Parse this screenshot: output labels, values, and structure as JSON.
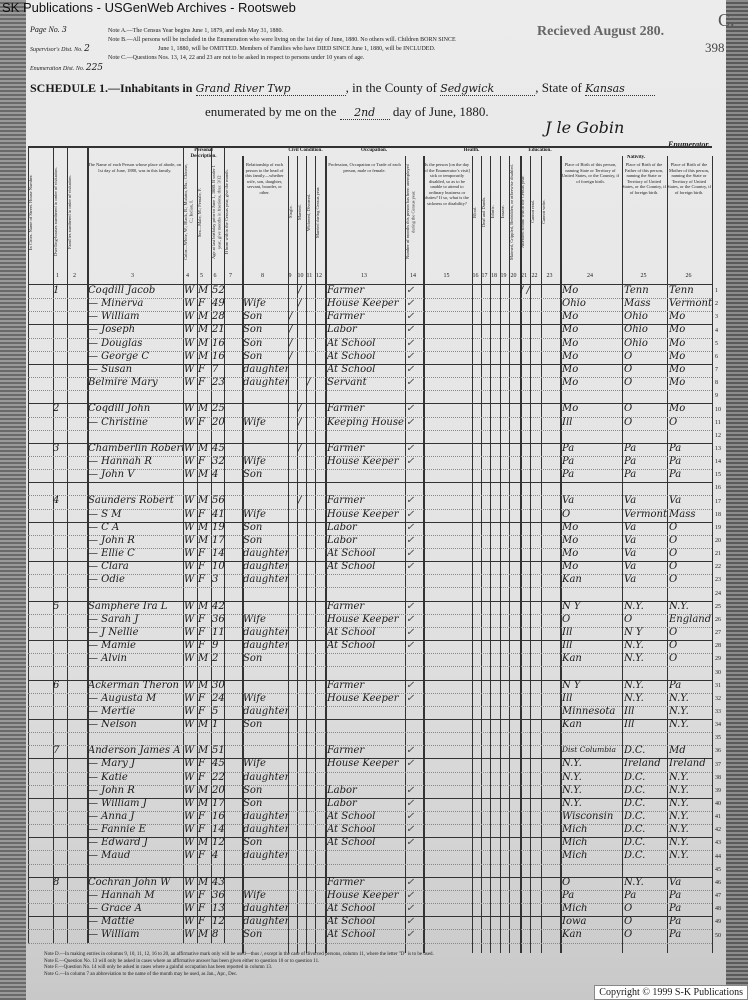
{
  "watermark": "SK Publications - USGenWeb Archives - Rootsweb",
  "copyright": "Copyright © 1999 S-K Publications",
  "received": "Recieved August 280.",
  "corner_mark": "C.",
  "corner_number": "398",
  "page_no_label": "Page No.",
  "page_no": "3",
  "supervisor_label": "Supervisor's Dist. No.",
  "supervisor_no": "2",
  "enum_dist_label": "Enumeration Dist. No.",
  "enum_dist_no": "225",
  "notes_top": [
    "Note A.—The Census Year begins June 1, 1879, and ends May 31, 1880.",
    "Note B.—All persons will be included in the Enumeration who were living on the 1st day of June, 1880. No others will. Children BORN SINCE",
    "June 1, 1880, will be OMITTED. Members of Families who have DIED SINCE June 1, 1880, will be INCLUDED.",
    "Note C.—Questions Nos. 13, 14, 22 and 23 are not to be asked in respect to persons under 10 years of age."
  ],
  "schedule": {
    "title": "SCHEDULE 1.—Inhabitants in",
    "place": "Grand River Twp",
    "county_label": ", in the County of",
    "county": "Sedgwick",
    "state_label": ", State of",
    "state": "Kansas",
    "enumerated_label": "enumerated by me on the",
    "day": "2nd",
    "month_year": "day of June, 1880.",
    "enumerator_signature": "J le Gobin",
    "enumerator_label": "Enumerator."
  },
  "groups": {
    "personal": "Personal Description.",
    "civil": "Civil Condition.",
    "occupation": "Occupation.",
    "health": "Health.",
    "education": "Education.",
    "nativity": "Nativity."
  },
  "columns": [
    {
      "n": "",
      "h": "In Cities. Name of Street. House Number."
    },
    {
      "n": "1",
      "h": "Dwelling-houses numbered in order of visitation."
    },
    {
      "n": "2",
      "h": "Families numbered in order of visitation."
    },
    {
      "n": "3",
      "h": "The Name of each Person whose place of abode, on 1st day of June, 1880, was in this family."
    },
    {
      "n": "4",
      "h": "Color—White, W.; Black, B.; Mulatto, Mu.; Chinese, C.; Indian, I."
    },
    {
      "n": "5",
      "h": "Sex—Male, M.; Female, F."
    },
    {
      "n": "6",
      "h": "Age at last birthday prior to June 1, 1880. If under 1 year, give months in fractions, thus: 3/12"
    },
    {
      "n": "7",
      "h": "If born within the Census year, give the month."
    },
    {
      "n": "8",
      "h": "Relationship of each person to the head of this family—whether wife, son, daughter, servant, boarder, or other."
    },
    {
      "n": "9",
      "h": "Single."
    },
    {
      "n": "10",
      "h": "Married."
    },
    {
      "n": "11",
      "h": "Widowed, Divorced."
    },
    {
      "n": "12",
      "h": "Married during Census year."
    },
    {
      "n": "13",
      "h": "Profession, Occupation or Trade of each person, male or female."
    },
    {
      "n": "14",
      "h": "Number of months this person has been unemployed during the Census year."
    },
    {
      "n": "15",
      "h": "Is the person [on the day of the Enumerator's visit] sick or temporarily disabled, so as to be unable to attend to ordinary business or duties? If so, what is the sickness or disability?"
    },
    {
      "n": "16",
      "h": "Blind."
    },
    {
      "n": "17",
      "h": "Deaf and Dumb."
    },
    {
      "n": "18",
      "h": "Idiotic."
    },
    {
      "n": "19",
      "h": "Insane."
    },
    {
      "n": "20",
      "h": "Maimed, Crippled, Bedridden, or otherwise disabled."
    },
    {
      "n": "21",
      "h": "Attended school within the Census year."
    },
    {
      "n": "22",
      "h": "Cannot read."
    },
    {
      "n": "23",
      "h": "Cannot write."
    },
    {
      "n": "24",
      "h": "Place of Birth of this person, naming State or Territory of United States, or the Country, if of foreign birth."
    },
    {
      "n": "25",
      "h": "Place of Birth of the Father of this person, naming the State or Territory of United States, or the Country, if of foreign birth."
    },
    {
      "n": "26",
      "h": "Place of Birth of the Mother of this person, naming the State or Territory of United States, or the Country, if of foreign birth."
    }
  ],
  "rows": [
    {
      "line": 1,
      "fam": "1",
      "name": "Coqdill Jacob",
      "color": "W",
      "sex": "M",
      "age": "52",
      "rel": "",
      "married": "/",
      "occ": "Farmer",
      "edu": "/ /",
      "birth": "Mo",
      "father": "Tenn",
      "mother": "Tenn"
    },
    {
      "line": 2,
      "name": "— Minerva",
      "color": "W",
      "sex": "F",
      "age": "49",
      "rel": "Wife",
      "married": "/",
      "occ": "House Keeper",
      "birth": "Ohio",
      "father": "Mass",
      "mother": "Vermont"
    },
    {
      "line": 3,
      "name": "— William",
      "color": "W",
      "sex": "M",
      "age": "28",
      "rel": "Son",
      "single": "/",
      "occ": "Farmer",
      "birth": "Mo",
      "father": "Ohio",
      "mother": "Mo"
    },
    {
      "line": 4,
      "name": "— Joseph",
      "color": "W",
      "sex": "M",
      "age": "21",
      "rel": "Son",
      "single": "/",
      "occ": "Labor",
      "birth": "Mo",
      "father": "Ohio",
      "mother": "Mo"
    },
    {
      "line": 5,
      "name": "— Douglas",
      "color": "W",
      "sex": "M",
      "age": "16",
      "rel": "Son",
      "single": "/",
      "occ": "At School",
      "birth": "Mo",
      "father": "Ohio",
      "mother": "Mo"
    },
    {
      "line": 6,
      "name": "— George C",
      "color": "W",
      "sex": "M",
      "age": "16",
      "rel": "Son",
      "single": "/",
      "occ": "At School",
      "birth": "Mo",
      "father": "O",
      "mother": "Mo"
    },
    {
      "line": 7,
      "name": "— Susan",
      "color": "W",
      "sex": "F",
      "age": "7",
      "rel": "daughter",
      "occ": "At School",
      "birth": "Mo",
      "father": "O",
      "mother": "Mo"
    },
    {
      "line": 8,
      "name": "Belmire Mary",
      "color": "W",
      "sex": "F",
      "age": "23",
      "rel": "daughter",
      "widowed": "/",
      "occ": "Servant",
      "birth": "Mo",
      "father": "O",
      "mother": "Mo"
    },
    {
      "line": 10,
      "fam": "2",
      "name": "Coqdill John",
      "color": "W",
      "sex": "M",
      "age": "25",
      "rel": "",
      "married": "/",
      "occ": "Farmer",
      "birth": "Mo",
      "father": "O",
      "mother": "Mo"
    },
    {
      "line": 11,
      "name": "— Christine",
      "color": "W",
      "sex": "F",
      "age": "20",
      "rel": "Wife",
      "married": "/",
      "occ": "Keeping House",
      "birth": "Ill",
      "father": "O",
      "mother": "O"
    },
    {
      "line": 13,
      "fam": "3",
      "name": "Chamberlin Robert H",
      "color": "W",
      "sex": "M",
      "age": "45",
      "rel": "",
      "married": "/",
      "occ": "Farmer",
      "birth": "Pa",
      "father": "Pa",
      "mother": "Pa"
    },
    {
      "line": 14,
      "name": "— Hannah R",
      "color": "W",
      "sex": "F",
      "age": "32",
      "rel": "Wife",
      "occ": "House Keeper",
      "birth": "Pa",
      "father": "Pa",
      "mother": "Pa"
    },
    {
      "line": 15,
      "name": "— John V",
      "color": "W",
      "sex": "M",
      "age": "4",
      "rel": "Son",
      "occ": "",
      "birth": "Pa",
      "father": "Pa",
      "mother": "Pa"
    },
    {
      "line": 17,
      "fam": "4",
      "name": "Saunders Robert",
      "color": "W",
      "sex": "M",
      "age": "56",
      "rel": "",
      "married": "/",
      "occ": "Farmer",
      "birth": "Va",
      "father": "Va",
      "mother": "Va"
    },
    {
      "line": 18,
      "name": "— S M",
      "color": "W",
      "sex": "F",
      "age": "41",
      "rel": "Wife",
      "occ": "House Keeper",
      "birth": "O",
      "father": "Vermont",
      "mother": "Mass"
    },
    {
      "line": 19,
      "name": "— C A",
      "color": "W",
      "sex": "M",
      "age": "19",
      "rel": "Son",
      "occ": "Labor",
      "birth": "Mo",
      "father": "Va",
      "mother": "O"
    },
    {
      "line": 20,
      "name": "— John R",
      "color": "W",
      "sex": "M",
      "age": "17",
      "rel": "Son",
      "occ": "Labor",
      "birth": "Mo",
      "father": "Va",
      "mother": "O"
    },
    {
      "line": 21,
      "name": "— Ellie C",
      "color": "W",
      "sex": "F",
      "age": "14",
      "rel": "daughter",
      "occ": "At School",
      "birth": "Mo",
      "father": "Va",
      "mother": "O"
    },
    {
      "line": 22,
      "name": "— Clara",
      "color": "W",
      "sex": "F",
      "age": "10",
      "rel": "daughter",
      "occ": "At School",
      "birth": "Mo",
      "father": "Va",
      "mother": "O"
    },
    {
      "line": 23,
      "name": "— Odie",
      "color": "W",
      "sex": "F",
      "age": "3",
      "rel": "daughter",
      "occ": "",
      "birth": "Kan",
      "father": "Va",
      "mother": "O"
    },
    {
      "line": 25,
      "fam": "5",
      "name": "Samphere Ira L",
      "color": "W",
      "sex": "M",
      "age": "42",
      "rel": "",
      "occ": "Farmer",
      "birth": "N Y",
      "father": "N.Y.",
      "mother": "N.Y."
    },
    {
      "line": 26,
      "name": "— Sarah J",
      "color": "W",
      "sex": "F",
      "age": "36",
      "rel": "Wife",
      "occ": "House Keeper",
      "birth": "O",
      "father": "O",
      "mother": "England"
    },
    {
      "line": 27,
      "name": "— J Nellie",
      "color": "W",
      "sex": "F",
      "age": "11",
      "rel": "daughter",
      "occ": "At School",
      "birth": "Ill",
      "father": "N Y",
      "mother": "O"
    },
    {
      "line": 28,
      "name": "— Mamie",
      "color": "W",
      "sex": "F",
      "age": "9",
      "rel": "daughter",
      "occ": "At School",
      "birth": "Ill",
      "father": "N.Y.",
      "mother": "O"
    },
    {
      "line": 29,
      "name": "— Alvin",
      "color": "W",
      "sex": "M",
      "age": "2",
      "rel": "Son",
      "occ": "",
      "birth": "Kan",
      "father": "N.Y.",
      "mother": "O"
    },
    {
      "line": 31,
      "fam": "6",
      "name": "Ackerman Theron",
      "color": "W",
      "sex": "M",
      "age": "30",
      "rel": "",
      "occ": "Farmer",
      "birth": "N Y",
      "father": "N.Y.",
      "mother": "Pa"
    },
    {
      "line": 32,
      "name": "— Augusta M",
      "color": "W",
      "sex": "F",
      "age": "24",
      "rel": "Wife",
      "occ": "House Keeper",
      "birth": "Ill",
      "father": "N.Y.",
      "mother": "N.Y."
    },
    {
      "line": 33,
      "name": "— Mertie",
      "color": "W",
      "sex": "F",
      "age": "5",
      "rel": "daughter",
      "occ": "",
      "birth": "Minnesota",
      "father": "Ill",
      "mother": "N.Y."
    },
    {
      "line": 34,
      "name": "— Nelson",
      "color": "W",
      "sex": "M",
      "age": "1",
      "rel": "Son",
      "occ": "",
      "birth": "Kan",
      "father": "Ill",
      "mother": "N.Y."
    },
    {
      "line": 36,
      "fam": "7",
      "name": "Anderson James A",
      "color": "W",
      "sex": "M",
      "age": "51",
      "rel": "",
      "occ": "Farmer",
      "birth": "Dist Columbia",
      "father": "D.C.",
      "mother": "Md"
    },
    {
      "line": 37,
      "name": "— Mary J",
      "color": "W",
      "sex": "F",
      "age": "45",
      "rel": "Wife",
      "occ": "House Keeper",
      "birth": "N.Y.",
      "father": "Ireland",
      "mother": "Ireland"
    },
    {
      "line": 38,
      "name": "— Katie",
      "color": "W",
      "sex": "F",
      "age": "22",
      "rel": "daughter",
      "occ": "",
      "birth": "N.Y.",
      "father": "D.C.",
      "mother": "N.Y."
    },
    {
      "line": 39,
      "name": "— John R",
      "color": "W",
      "sex": "M",
      "age": "20",
      "rel": "Son",
      "occ": "Labor",
      "birth": "N.Y.",
      "father": "D.C.",
      "mother": "N.Y."
    },
    {
      "line": 40,
      "name": "— William J",
      "color": "W",
      "sex": "M",
      "age": "17",
      "rel": "Son",
      "occ": "Labor",
      "birth": "N.Y.",
      "father": "D.C.",
      "mother": "N.Y."
    },
    {
      "line": 41,
      "name": "— Anna J",
      "color": "W",
      "sex": "F",
      "age": "16",
      "rel": "daughter",
      "occ": "At School",
      "birth": "Wisconsin",
      "father": "D.C.",
      "mother": "N.Y."
    },
    {
      "line": 42,
      "name": "— Fannie E",
      "color": "W",
      "sex": "F",
      "age": "14",
      "rel": "daughter",
      "occ": "At School",
      "birth": "Mich",
      "father": "D.C.",
      "mother": "N.Y."
    },
    {
      "line": 43,
      "name": "— Edward J",
      "color": "W",
      "sex": "M",
      "age": "12",
      "rel": "Son",
      "occ": "At School",
      "birth": "Mich",
      "father": "D.C.",
      "mother": "N.Y."
    },
    {
      "line": 44,
      "name": "— Maud",
      "color": "W",
      "sex": "F",
      "age": "4",
      "rel": "daughter",
      "occ": "",
      "birth": "Mich",
      "father": "D.C.",
      "mother": "N.Y."
    },
    {
      "line": 46,
      "fam": "8",
      "name": "Cochran John W",
      "color": "W",
      "sex": "M",
      "age": "43",
      "rel": "",
      "occ": "Farmer",
      "birth": "O",
      "father": "N.Y.",
      "mother": "Va"
    },
    {
      "line": 47,
      "name": "— Hannah M",
      "color": "W",
      "sex": "F",
      "age": "36",
      "rel": "Wife",
      "occ": "House Keeper",
      "birth": "Pa",
      "father": "Pa",
      "mother": "Pa"
    },
    {
      "line": 48,
      "name": "— Grace A",
      "color": "W",
      "sex": "F",
      "age": "13",
      "rel": "daughter",
      "occ": "At School",
      "birth": "Mich",
      "father": "O",
      "mother": "Pa"
    },
    {
      "line": 49,
      "name": "— Mattie",
      "color": "W",
      "sex": "F",
      "age": "12",
      "rel": "daughter",
      "occ": "At School",
      "birth": "Iowa",
      "father": "O",
      "mother": "Pa"
    },
    {
      "line": 50,
      "name": "— William",
      "color": "W",
      "sex": "M",
      "age": "8",
      "rel": "Son",
      "occ": "At School",
      "birth": "Kan",
      "father": "O",
      "mother": "Pa"
    }
  ],
  "notes_bottom": [
    "Note D.—In making entries in columns 9, 10, 11, 12, 16 to 20, an affirmative mark only will be used—thus /, except in the case of divorced persons, column 11, where the letter \"D\" is to be used.",
    "Note E.—Question No. 13 will only be asked in cases where an affirmative answer has been given either to question 10 or to question 11.",
    "Note F.—Question No. 14 will only be asked in cases where a gainful occupation has been reported in column 13.",
    "Note G.—In column 7 an abbreviation to the name of the month may be used, as Jan., Apr., Dec."
  ]
}
